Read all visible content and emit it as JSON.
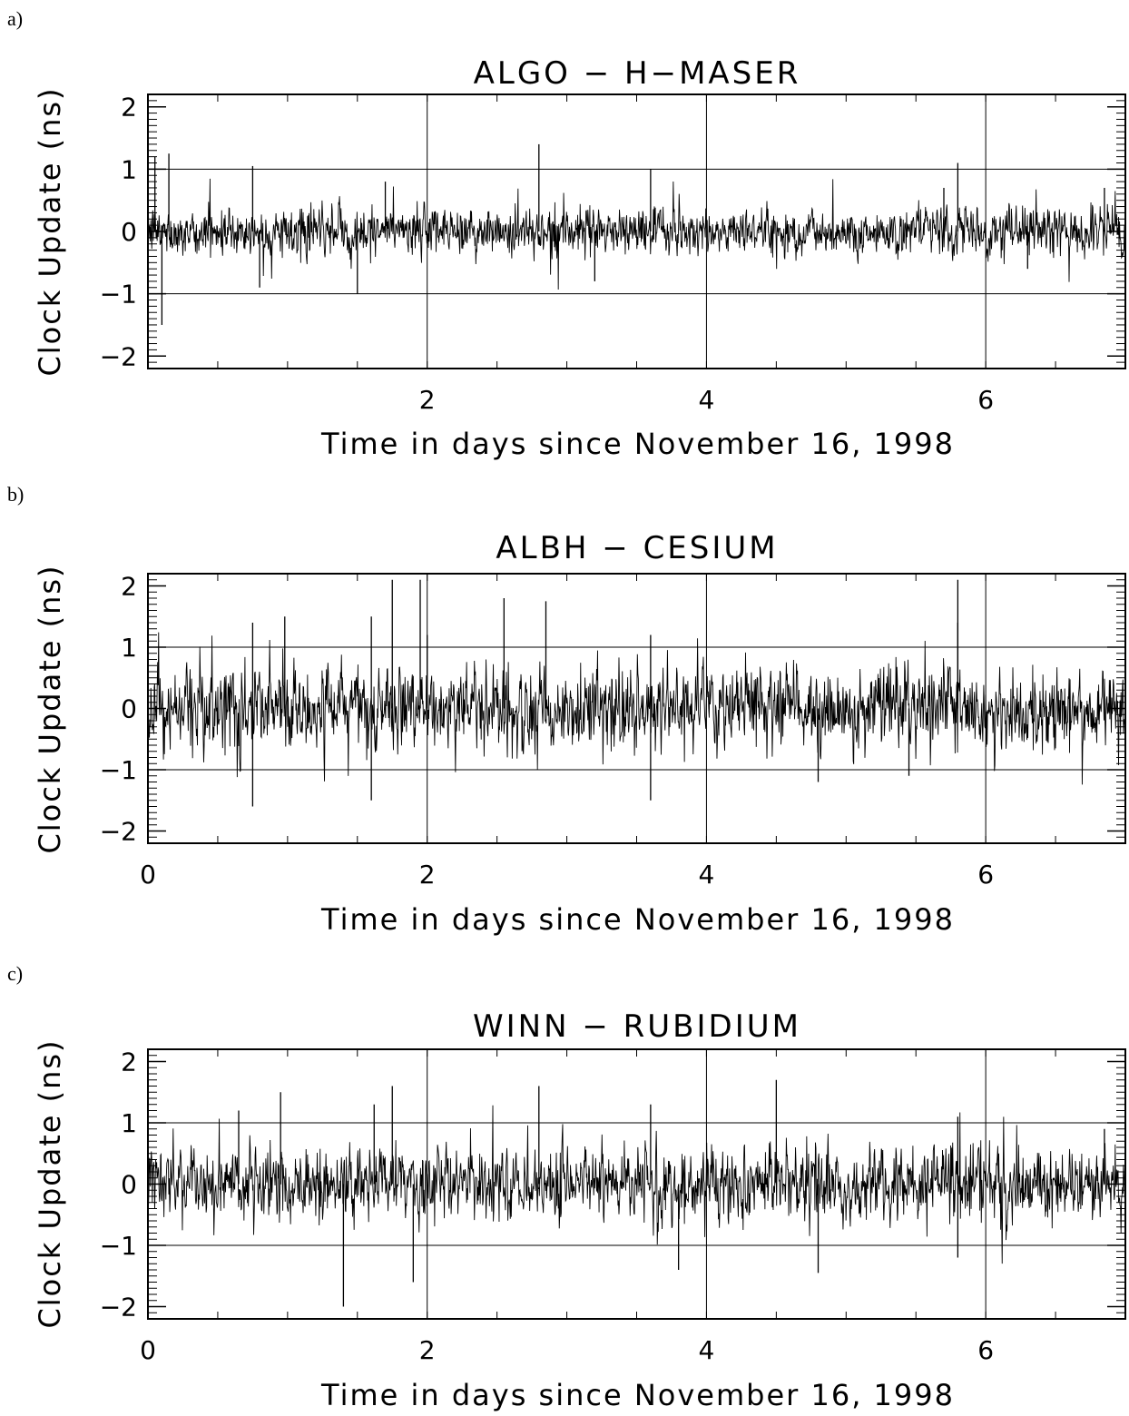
{
  "chart_data": [
    {
      "panel": "a)",
      "type": "line",
      "title": "ALGO − H−MASER",
      "xlabel": "Time in days since November 16, 1998",
      "ylabel": "Clock Update (ns)",
      "xlim": [
        0,
        7
      ],
      "ylim": [
        -2.2,
        2.2
      ],
      "x_ticks": [
        2,
        4,
        6
      ],
      "y_ticks": [
        -2,
        -1,
        0,
        1,
        2
      ],
      "y_tick_labels": [
        "−2",
        "−1",
        "0",
        "1",
        "2"
      ],
      "grid": true,
      "series": [
        {
          "noise_amplitude_ns": 0.18,
          "samples": 2016,
          "spikes": [
            [
              0.05,
              1.2
            ],
            [
              0.1,
              -1.5
            ],
            [
              0.15,
              1.25
            ],
            [
              0.75,
              1.05
            ],
            [
              0.8,
              -0.9
            ],
            [
              1.5,
              -1.0
            ],
            [
              1.7,
              0.8
            ],
            [
              2.8,
              1.4
            ],
            [
              3.6,
              1.0
            ],
            [
              3.2,
              -0.8
            ],
            [
              5.8,
              1.1
            ],
            [
              5.7,
              0.7
            ],
            [
              6.3,
              -0.6
            ],
            [
              6.85,
              0.7
            ]
          ]
        }
      ]
    },
    {
      "panel": "b)",
      "type": "line",
      "title": "ALBH − CESIUM",
      "xlabel": "Time in days since November 16, 1998",
      "ylabel": "Clock Update (ns)",
      "xlim": [
        0,
        7
      ],
      "ylim": [
        -2.2,
        2.2
      ],
      "x_ticks": [
        0,
        2,
        4,
        6
      ],
      "y_ticks": [
        -2,
        -1,
        0,
        1,
        2
      ],
      "y_tick_labels": [
        "−2",
        "−1",
        "0",
        "1",
        "2"
      ],
      "grid": true,
      "series": [
        {
          "noise_amplitude_ns": 0.32,
          "samples": 2016,
          "spikes": [
            [
              0.75,
              -1.6
            ],
            [
              0.75,
              1.4
            ],
            [
              0.98,
              1.5
            ],
            [
              1.6,
              1.5
            ],
            [
              1.6,
              -1.5
            ],
            [
              1.75,
              2.1
            ],
            [
              1.95,
              2.1
            ],
            [
              2.0,
              1.2
            ],
            [
              2.55,
              1.8
            ],
            [
              2.85,
              1.75
            ],
            [
              3.6,
              -1.5
            ],
            [
              3.6,
              1.2
            ],
            [
              4.8,
              -1.2
            ],
            [
              5.8,
              1.4
            ],
            [
              5.8,
              2.1
            ],
            [
              5.45,
              -1.1
            ]
          ]
        }
      ]
    },
    {
      "panel": "c)",
      "type": "line",
      "title": "WINN − RUBIDIUM",
      "xlabel": "Time in days since November 16, 1998",
      "ylabel": "Clock Update (ns)",
      "xlim": [
        0,
        7
      ],
      "ylim": [
        -2.2,
        2.2
      ],
      "x_ticks": [
        0,
        2,
        4,
        6
      ],
      "y_ticks": [
        -2,
        -1,
        0,
        1,
        2
      ],
      "y_tick_labels": [
        "−2",
        "−1",
        "0",
        "1",
        "2"
      ],
      "grid": true,
      "series": [
        {
          "noise_amplitude_ns": 0.28,
          "samples": 2016,
          "spikes": [
            [
              0.65,
              1.2
            ],
            [
              0.95,
              1.5
            ],
            [
              1.4,
              -2.0
            ],
            [
              1.62,
              1.3
            ],
            [
              1.75,
              1.6
            ],
            [
              1.9,
              -1.6
            ],
            [
              2.8,
              1.6
            ],
            [
              3.6,
              1.3
            ],
            [
              3.8,
              -1.4
            ],
            [
              4.5,
              1.7
            ],
            [
              4.8,
              -1.45
            ],
            [
              5.8,
              1.1
            ],
            [
              5.8,
              -1.2
            ],
            [
              6.85,
              0.9
            ]
          ]
        }
      ]
    }
  ]
}
